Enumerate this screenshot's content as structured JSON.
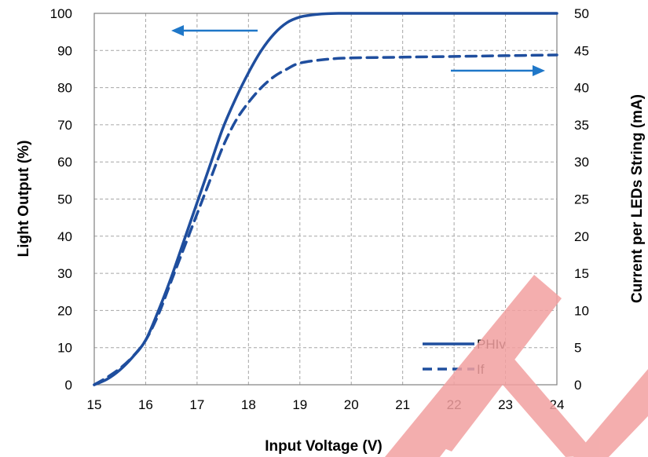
{
  "chart_data": {
    "type": "line",
    "xlabel": "Input Voltage (V)",
    "ylabel_left": "Light Output (%)",
    "ylabel_right": "Current per LEDs String (mA)",
    "x_ticks": [
      "15",
      "16",
      "17",
      "18",
      "19",
      "20",
      "21",
      "22",
      "23",
      "24"
    ],
    "y_left_ticks": [
      "0",
      "10",
      "20",
      "30",
      "40",
      "50",
      "60",
      "70",
      "80",
      "90",
      "100"
    ],
    "y_right_ticks": [
      "0",
      "5",
      "10",
      "15",
      "20",
      "25",
      "30",
      "35",
      "40",
      "45",
      "50"
    ],
    "xlim": [
      15,
      24
    ],
    "ylim_left": [
      0,
      100
    ],
    "ylim_right": [
      0,
      50
    ],
    "grid": true,
    "legend_position": "bottom-right",
    "series": [
      {
        "name": "PHIv",
        "axis": "left",
        "style": "solid",
        "color": "#1F4E9E",
        "x": [
          15,
          15.25,
          15.5,
          15.75,
          16,
          16.25,
          16.5,
          16.75,
          17,
          17.25,
          17.5,
          17.75,
          18,
          18.25,
          18.5,
          18.75,
          19,
          19.25,
          19.5,
          19.75,
          20,
          21,
          22,
          23,
          24
        ],
        "y": [
          0,
          1.5,
          4,
          7.5,
          12,
          20,
          29,
          39,
          49,
          59,
          69,
          77,
          84,
          90,
          94.5,
          97.5,
          99,
          99.6,
          99.9,
          100,
          100,
          100,
          100,
          100,
          100
        ]
      },
      {
        "name": "If",
        "axis": "right",
        "style": "dashed",
        "color": "#1F4E9E",
        "x": [
          15,
          15.25,
          15.5,
          15.75,
          16,
          16.25,
          16.5,
          16.75,
          17,
          17.25,
          17.5,
          17.75,
          18,
          18.25,
          18.5,
          18.75,
          19,
          19.5,
          20,
          21,
          22,
          23,
          24
        ],
        "y": [
          0,
          1,
          2.2,
          3.8,
          6,
          9.5,
          14,
          18.5,
          23,
          27.5,
          32,
          35.5,
          38,
          40,
          41.5,
          42.5,
          43.3,
          43.8,
          44,
          44.1,
          44.2,
          44.3,
          44.4
        ]
      }
    ],
    "annotations": [
      {
        "type": "arrow",
        "direction": "left",
        "meaning": "PHIv reads left axis"
      },
      {
        "type": "arrow",
        "direction": "right",
        "meaning": "If reads right axis"
      }
    ]
  }
}
